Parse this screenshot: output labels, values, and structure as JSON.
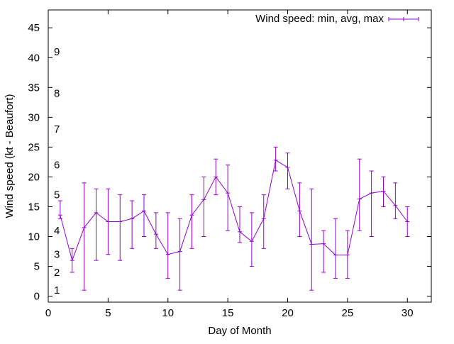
{
  "chart_data": {
    "type": "line",
    "xlabel": "Day of Month",
    "ylabel": "Wind speed (kt - Beaufort)",
    "xlim": [
      0,
      32
    ],
    "ylim": [
      -1,
      48
    ],
    "x_ticks": [
      0,
      5,
      10,
      15,
      20,
      25,
      30
    ],
    "y_ticks": [
      0,
      5,
      10,
      15,
      20,
      25,
      30,
      35,
      40,
      45
    ],
    "beaufort_labels": [
      {
        "label": "1",
        "value": 1
      },
      {
        "label": "2",
        "value": 4
      },
      {
        "label": "3",
        "value": 7
      },
      {
        "label": "4",
        "value": 11
      },
      {
        "label": "5",
        "value": 17
      },
      {
        "label": "6",
        "value": 22
      },
      {
        "label": "7",
        "value": 28
      },
      {
        "label": "8",
        "value": 34
      },
      {
        "label": "9",
        "value": 41
      }
    ],
    "legend_position": "top-right",
    "series": [
      {
        "name": "Wind speed: min, avg, max",
        "color": "#9400d3",
        "x": [
          1,
          2,
          3,
          4,
          5,
          6,
          7,
          8,
          9,
          10,
          11,
          12,
          13,
          14,
          15,
          16,
          17,
          18,
          19,
          20,
          21,
          22,
          23,
          24,
          25,
          26,
          27,
          28,
          29,
          30
        ],
        "avg": [
          13.6,
          6.0,
          11.5,
          14.0,
          12.5,
          12.5,
          13.0,
          14.3,
          10.4,
          7.0,
          7.5,
          13.6,
          16.2,
          20.0,
          17.3,
          10.8,
          9.2,
          13.0,
          22.8,
          21.6,
          14.3,
          8.7,
          8.8,
          6.9,
          6.9,
          16.3,
          17.3,
          17.6,
          15.2,
          12.5
        ],
        "min": [
          13,
          4,
          1,
          6,
          7,
          6,
          8,
          10,
          8,
          3,
          1,
          8,
          10,
          17,
          11,
          9,
          5,
          8,
          21,
          18,
          10,
          1,
          4,
          3,
          3,
          11,
          10,
          15,
          13,
          10
        ],
        "max": [
          16,
          8,
          19,
          18,
          18,
          17,
          16,
          17,
          14,
          14,
          13,
          17,
          20,
          23,
          22,
          15,
          14,
          17,
          25,
          24,
          19,
          18,
          11,
          13,
          11,
          23,
          21,
          20,
          19,
          15
        ]
      }
    ]
  }
}
